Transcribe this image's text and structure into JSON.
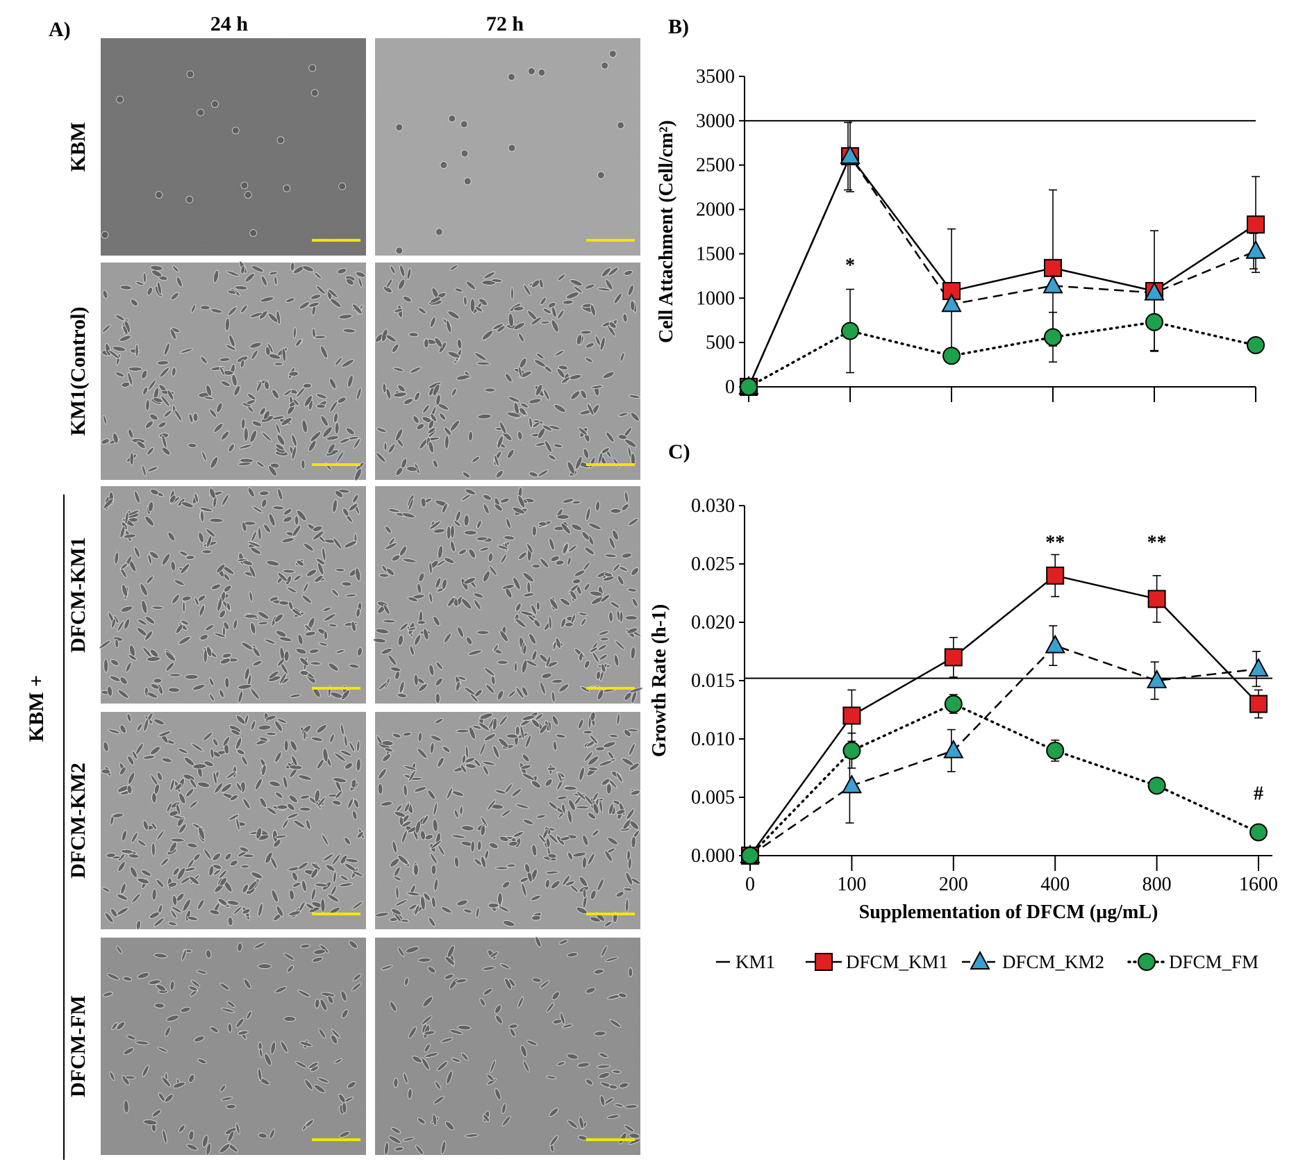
{
  "panel_a": {
    "letter": "A)",
    "columns": [
      "24 h",
      "72 h"
    ],
    "rows": [
      "KBM",
      "KM1(Control)",
      "DFCM-KM1",
      "DFCM-KM2",
      "DFCM-FM"
    ],
    "group_label": "KBM +",
    "density": [
      0.04,
      0.55,
      0.65,
      0.7,
      0.28
    ]
  },
  "legend": [
    {
      "name": "KM1",
      "marker": "none",
      "dash": "solid",
      "color": "#000000"
    },
    {
      "name": "DFCM_KM1",
      "marker": "square",
      "dash": "solid",
      "color": "#e02020"
    },
    {
      "name": "DFCM_KM2",
      "marker": "triangle",
      "dash": "dashed",
      "color": "#3aa0d0"
    },
    {
      "name": "DFCM_FM",
      "marker": "circle",
      "dash": "dotted",
      "color": "#1fa04a"
    }
  ],
  "chart_data": [
    {
      "panel": "B)",
      "type": "line",
      "title": "",
      "xlabel": "",
      "ylabel": "Cell Attachment (Cell/cm²)",
      "categories": [
        "0",
        "100",
        "200",
        "400",
        "800",
        "1600"
      ],
      "show_x_tick_labels": false,
      "ylim": [
        0,
        3500
      ],
      "yticks": [
        "0",
        "500",
        "1000",
        "1500",
        "2000",
        "2500",
        "3000",
        "3500"
      ],
      "reference_line": {
        "name": "KM1",
        "value": 3000
      },
      "series": [
        {
          "name": "DFCM_KM1",
          "values": [
            0,
            2600,
            1080,
            1340,
            1080,
            1830
          ],
          "errors": [
            0,
            400,
            700,
            880,
            680,
            540
          ]
        },
        {
          "name": "DFCM_KM2",
          "values": [
            0,
            2600,
            930,
            1140,
            1060,
            1530
          ],
          "errors": [
            0,
            380,
            0,
            0,
            0,
            200
          ]
        },
        {
          "name": "DFCM_FM",
          "values": [
            0,
            630,
            350,
            560,
            730,
            470
          ],
          "errors": [
            0,
            470,
            0,
            280,
            320,
            0
          ]
        }
      ],
      "annotations": [
        {
          "category": "100",
          "text": "*",
          "value": 1300
        }
      ]
    },
    {
      "panel": "C)",
      "type": "line",
      "title": "",
      "xlabel": "Supplementation of DFCM (µg/mL)",
      "ylabel": "Growth Rate (h-1)",
      "categories": [
        "0",
        "100",
        "200",
        "400",
        "800",
        "1600"
      ],
      "show_x_tick_labels": true,
      "ylim": [
        0,
        0.03
      ],
      "yticks": [
        "0.000",
        "0.005",
        "0.010",
        "0.015",
        "0.020",
        "0.025",
        "0.030"
      ],
      "reference_line": {
        "name": "KM1",
        "value": 0.0152
      },
      "series": [
        {
          "name": "DFCM_KM1",
          "values": [
            0,
            0.012,
            0.017,
            0.024,
            0.022,
            0.013
          ],
          "errors": [
            0,
            0.0022,
            0.0017,
            0.0018,
            0.002,
            0.0012
          ]
        },
        {
          "name": "DFCM_KM2",
          "values": [
            0,
            0.006,
            0.009,
            0.018,
            0.015,
            0.016
          ],
          "errors": [
            0,
            0.0032,
            0.0018,
            0.0017,
            0.0016,
            0.0015
          ]
        },
        {
          "name": "DFCM_FM",
          "values": [
            0,
            0.009,
            0.013,
            0.009,
            0.006,
            0.002
          ],
          "errors": [
            0,
            0.0015,
            0.0008,
            0.0009,
            0.0004,
            0.0003
          ]
        }
      ],
      "annotations": [
        {
          "category": "400",
          "text": "**",
          "value": 0.0263
        },
        {
          "category": "800",
          "text": "**",
          "value": 0.0263
        },
        {
          "category": "1600",
          "text": "#",
          "value": 0.0048
        }
      ]
    }
  ]
}
